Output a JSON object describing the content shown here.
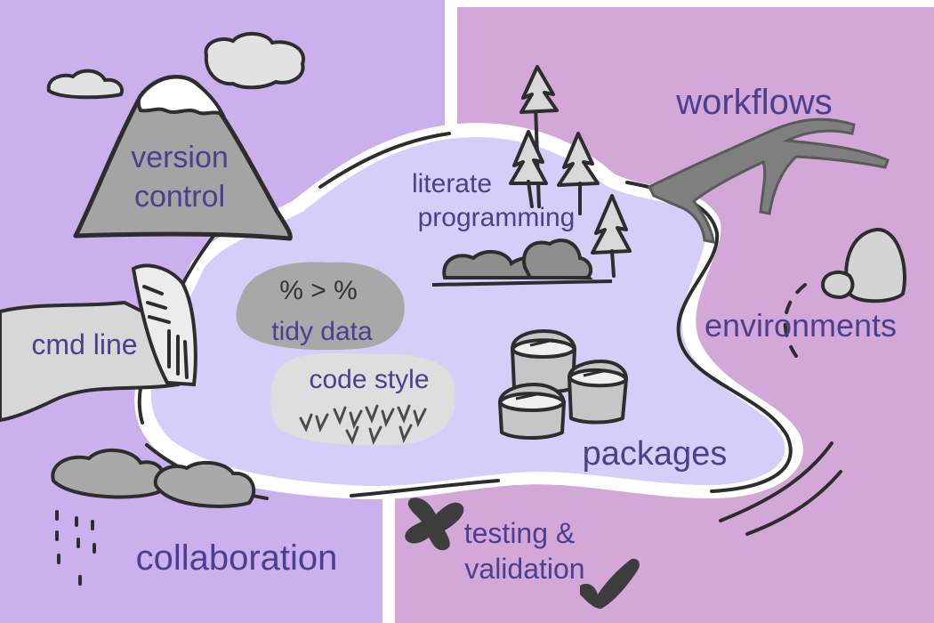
{
  "labels": {
    "version_control_1": "version",
    "version_control_2": "control",
    "workflows": "workflows",
    "literate_1": "literate",
    "literate_2": "programming",
    "tidy_data": "tidy data",
    "code_style": "code style",
    "cmd_line": "cmd line",
    "environments": "environments",
    "packages": "packages",
    "collaboration": "collaboration",
    "testing_1": "testing &",
    "testing_2": "validation",
    "tidy_symbols": "% > %"
  },
  "colors": {
    "left_bg": "#cbb0ee",
    "right_bg": "#d3a7d8",
    "lake": "#d5cef8",
    "ink": "#3a3a3a",
    "gray": "#a9a9a9",
    "light_gray": "#dcdcdc",
    "label": "#4b3f8f"
  }
}
